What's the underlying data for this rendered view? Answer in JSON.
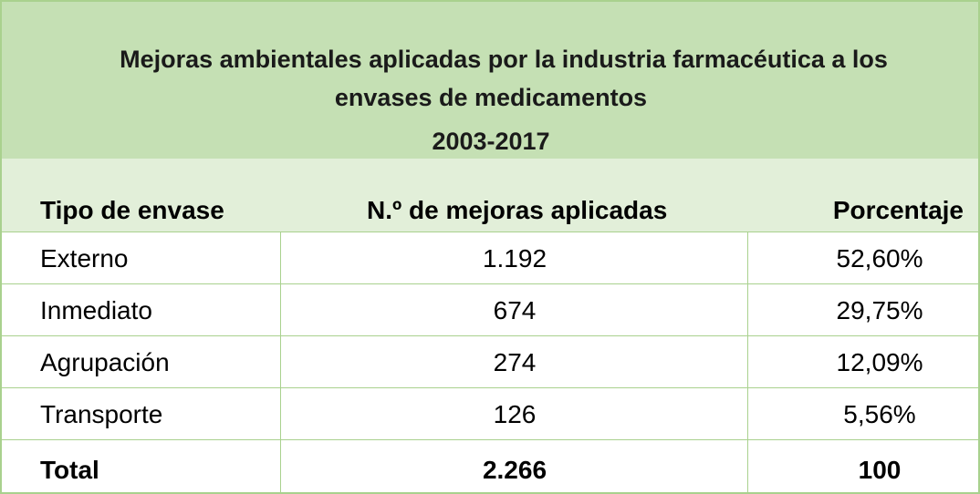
{
  "table": {
    "title_lines": [
      "Mejoras ambientales aplicadas por la industria farmacéutica a los",
      "envases de medicamentos",
      "2003-2017"
    ],
    "headers": [
      "Tipo de envase",
      "N.º de mejoras aplicadas",
      "Porcentaje"
    ],
    "rows": [
      [
        "Externo",
        "1.192",
        "52,60%"
      ],
      [
        "Inmediato",
        "674",
        "29,75%"
      ],
      [
        "Agrupación",
        "274",
        "12,09%"
      ],
      [
        "Transporte",
        "126",
        "5,56%"
      ]
    ],
    "total": [
      "Total",
      "2.266",
      "100"
    ]
  },
  "colors": {
    "title_band": "#c5e0b4",
    "header_band": "#e2efd9",
    "border": "#a9d18e"
  }
}
